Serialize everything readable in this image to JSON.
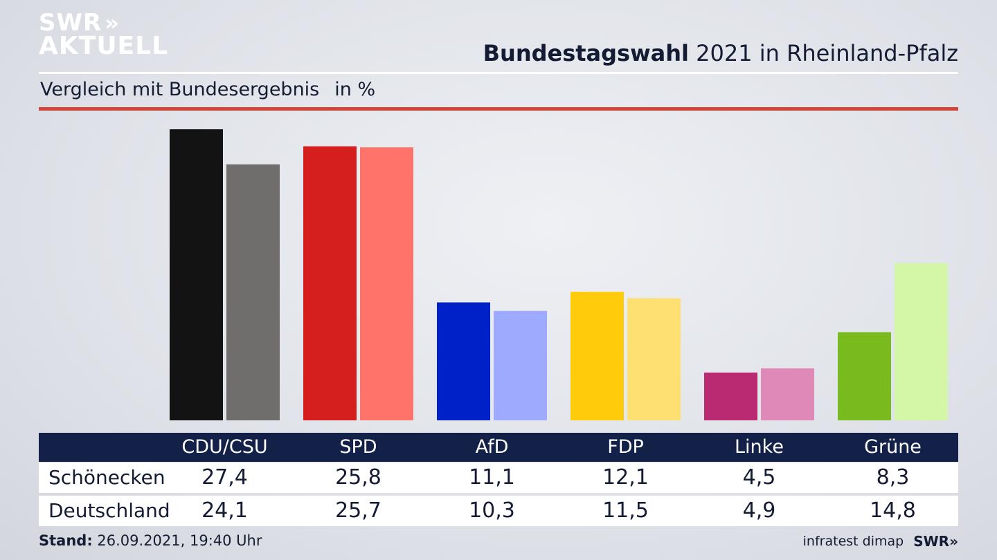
{
  "logo": {
    "line1": "SWR",
    "line1_icon": "double-chevron-right",
    "line2": "AKTUELL"
  },
  "header": {
    "title_bold": "Bundestagswahl",
    "title_rest": " 2021 in Rheinland-Pfalz",
    "subtitle": "Vergleich mit Bundesergebnis",
    "unit": "in %"
  },
  "chart_data": {
    "type": "bar",
    "categories": [
      "CDU/CSU",
      "SPD",
      "AfD",
      "FDP",
      "Linke",
      "Grüne"
    ],
    "series": [
      {
        "name": "Schönecken",
        "values": [
          27.4,
          25.8,
          11.1,
          12.1,
          4.5,
          8.3
        ]
      },
      {
        "name": "Deutschland",
        "values": [
          24.1,
          25.7,
          10.3,
          11.5,
          4.9,
          14.8
        ]
      }
    ],
    "value_labels": {
      "Schönecken": [
        "27,4",
        "25,8",
        "11,1",
        "12,1",
        "4,5",
        "8,3"
      ],
      "Deutschland": [
        "24,1",
        "25,7",
        "10,3",
        "11,5",
        "4,9",
        "14,8"
      ]
    },
    "colors": {
      "Schönecken": [
        "#131313",
        "#d51e1e",
        "#0021c8",
        "#ffcb0b",
        "#b92a72",
        "#79bb1e"
      ],
      "Deutschland": [
        "#6f6e6c",
        "#ff736b",
        "#9eaafe",
        "#fde071",
        "#df89b8",
        "#d4f6a7"
      ]
    },
    "ylim": [
      0,
      27.4
    ],
    "grid": false,
    "legend": "none"
  },
  "table": {
    "header": [
      "CDU/CSU",
      "SPD",
      "AfD",
      "FDP",
      "Linke",
      "Grüne"
    ],
    "rows": [
      {
        "label": "Schönecken",
        "values": [
          "27,4",
          "25,8",
          "11,1",
          "12,1",
          "4,5",
          "8,3"
        ]
      },
      {
        "label": "Deutschland",
        "values": [
          "24,1",
          "25,7",
          "10,3",
          "11,5",
          "4,9",
          "14,8"
        ]
      }
    ]
  },
  "footer": {
    "stand_label": "Stand:",
    "stand_value": " 26.09.2021, 19:40 Uhr",
    "source": "infratest dimap",
    "brand": "SWR",
    "brand_icon": "double-chevron-right"
  }
}
